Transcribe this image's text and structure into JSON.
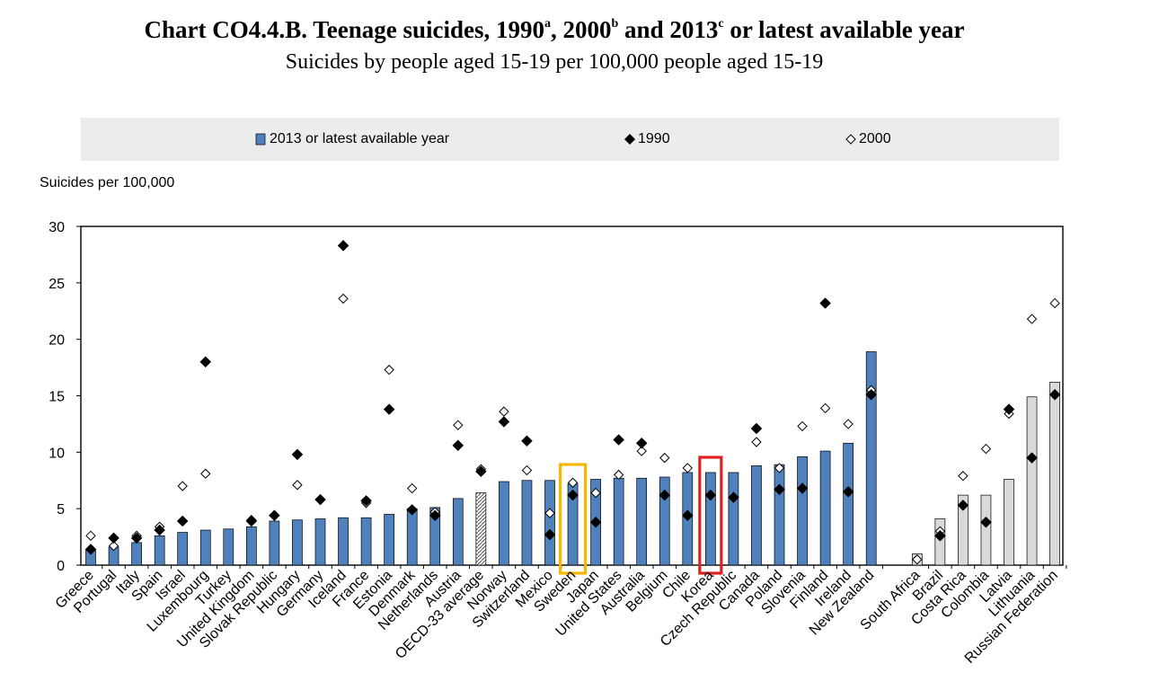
{
  "title": {
    "main": "Chart CO4.4.B. Teenage suicides, 1990",
    "sup_a": "a",
    "mid1": ", 2000",
    "sup_b": "b",
    "mid2": " and 2013",
    "sup_c": "c",
    "end": " or latest available year"
  },
  "subtitle": "Suicides by people aged 15-19 per 100,000 people aged 15-19",
  "legend": {
    "bar": "2013 or latest available year",
    "s1990": "1990",
    "s2000": "2000"
  },
  "colors": {
    "oecd_bar": "#4f81bd",
    "nonoecd_bar": "#d9d9d9",
    "highlight_sweden": "#f5b800",
    "highlight_korea": "#e02020"
  },
  "chart_data": {
    "type": "bar",
    "title": "Chart CO4.4.B. Teenage suicides, 1990, 2000 and 2013 or latest available year",
    "subtitle": "Suicides by people aged 15-19 per 100,000 people aged 15-19",
    "ylabel": "Suicides per 100,000",
    "ylim": [
      0,
      30
    ],
    "yticks": [
      0,
      5,
      10,
      15,
      20,
      25,
      30
    ],
    "highlighted": [
      "Sweden",
      "Korea"
    ],
    "categories": [
      "Greece",
      "Portugal",
      "Italy",
      "Spain",
      "Israel",
      "Luxembourg",
      "Turkey",
      "United Kingdom",
      "Slovak Republic",
      "Hungary",
      "Germany",
      "Iceland",
      "France",
      "Estonia",
      "Denmark",
      "Netherlands",
      "Austria",
      "OECD-33 average",
      "Norway",
      "Switzerland",
      "Mexico",
      "Sweden",
      "Japan",
      "United States",
      "Australia",
      "Belgium",
      "Chile",
      "Korea",
      "Czech Republic",
      "Canada",
      "Poland",
      "Slovenia",
      "Finland",
      "Ireland",
      "New Zealand",
      "South Africa",
      "Brazil",
      "Costa Rica",
      "Colombia",
      "Latvia",
      "Lithuania",
      "Russian Federation"
    ],
    "group": [
      "oecd",
      "oecd",
      "oecd",
      "oecd",
      "oecd",
      "oecd",
      "oecd",
      "oecd",
      "oecd",
      "oecd",
      "oecd",
      "oecd",
      "oecd",
      "oecd",
      "oecd",
      "oecd",
      "oecd",
      "average",
      "oecd",
      "oecd",
      "oecd",
      "oecd",
      "oecd",
      "oecd",
      "oecd",
      "oecd",
      "oecd",
      "oecd",
      "oecd",
      "oecd",
      "oecd",
      "oecd",
      "oecd",
      "oecd",
      "oecd",
      "partner",
      "partner",
      "partner",
      "partner",
      "partner",
      "partner",
      "partner"
    ],
    "series": [
      {
        "name": "2013 or latest available year",
        "marker": "bar",
        "values": [
          1.3,
          1.6,
          2.0,
          2.6,
          2.9,
          3.1,
          3.2,
          3.4,
          3.9,
          4.0,
          4.1,
          4.2,
          4.2,
          4.5,
          5.0,
          5.1,
          5.9,
          6.4,
          7.4,
          7.5,
          7.5,
          7.2,
          7.6,
          7.7,
          7.7,
          7.8,
          8.2,
          8.2,
          8.2,
          8.8,
          8.9,
          9.6,
          10.1,
          10.8,
          18.9,
          1.0,
          4.1,
          6.2,
          6.2,
          7.6,
          14.9,
          16.2
        ]
      },
      {
        "name": "1990",
        "marker": "filled-diamond",
        "values": [
          1.4,
          2.4,
          2.4,
          3.1,
          3.9,
          18.0,
          null,
          3.9,
          4.4,
          9.8,
          5.8,
          28.3,
          5.7,
          13.8,
          4.9,
          4.4,
          10.6,
          8.3,
          12.7,
          11.0,
          2.7,
          6.2,
          3.8,
          11.1,
          10.8,
          6.2,
          4.4,
          6.2,
          6.0,
          12.1,
          6.7,
          6.8,
          23.2,
          6.5,
          15.1,
          null,
          2.6,
          5.3,
          3.8,
          13.8,
          9.5,
          15.1
        ]
      },
      {
        "name": "2000",
        "marker": "hollow-diamond",
        "values": [
          2.6,
          1.7,
          2.6,
          3.4,
          7.0,
          8.1,
          null,
          4.0,
          4.4,
          7.1,
          5.8,
          23.6,
          5.5,
          17.3,
          6.8,
          4.7,
          12.4,
          8.5,
          13.6,
          8.4,
          4.6,
          7.3,
          6.4,
          8.0,
          10.1,
          9.5,
          8.6,
          6.2,
          6.0,
          10.9,
          8.6,
          12.3,
          13.9,
          12.5,
          15.5,
          0.5,
          3.0,
          7.9,
          10.3,
          13.4,
          21.8,
          23.2
        ]
      }
    ]
  }
}
